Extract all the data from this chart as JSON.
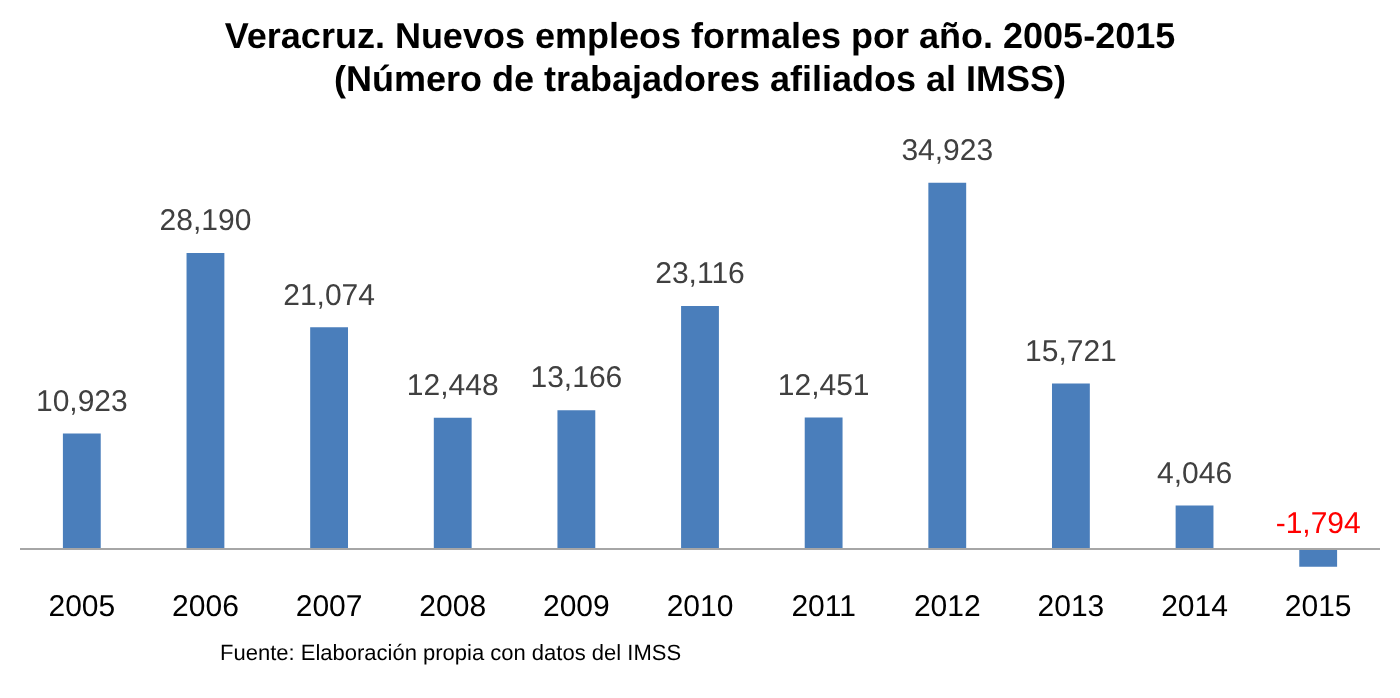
{
  "chart_data": {
    "type": "bar",
    "title": [
      "Veracruz. Nuevos empleos formales por año. 2005-2015",
      "(Número de trabajadores afiliados al IMSS)"
    ],
    "categories": [
      "2005",
      "2006",
      "2007",
      "2008",
      "2009",
      "2010",
      "2011",
      "2012",
      "2013",
      "2014",
      "2015"
    ],
    "values": [
      10923,
      28190,
      21074,
      12448,
      13166,
      23116,
      12451,
      34923,
      15721,
      4046,
      -1794
    ],
    "value_labels": [
      "10,923",
      "28,190",
      "21,074",
      "12,448",
      "13,166",
      "23,116",
      "12,451",
      "34,923",
      "15,721",
      "4,046",
      "-1,794"
    ],
    "color": "#4a7ebb",
    "grid": false,
    "legend": false,
    "annotations": [
      "Fuente: Elaboración propia con datos del IMSS"
    ]
  }
}
